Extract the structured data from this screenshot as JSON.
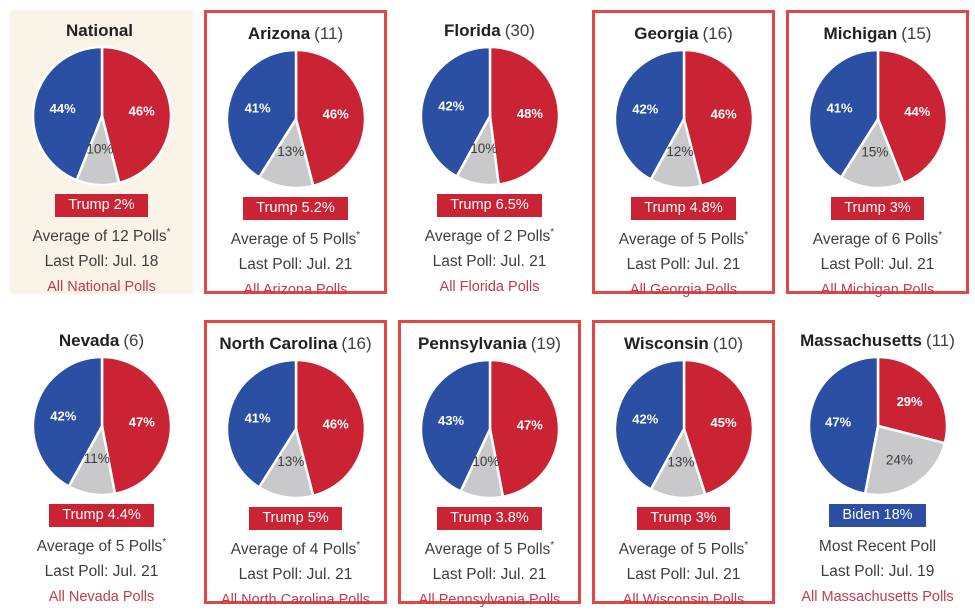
{
  "colors": {
    "biden_blue": "#2b4fa2",
    "trump_red": "#c92334",
    "undecided_gray": "#c9c9cb",
    "border_red": "#e24645",
    "highlight_bg": "#faf3e7",
    "link_red": "#c23b49",
    "title_color": "#212121",
    "count_color": "#3f3f3f",
    "body_text": "#3e3e3e",
    "gray_label_text": "#3a3a3a",
    "white_label_text": "#ffffff"
  },
  "chart_data": [
    {
      "type": "pie",
      "title": "National",
      "poll_count": "",
      "boxed": false,
      "highlight": true,
      "slices": [
        {
          "name": "Trump",
          "value": 46,
          "label": "46%",
          "color_key": "trump_red"
        },
        {
          "name": "Undecided",
          "value": 10,
          "label": "10%",
          "color_key": "undecided_gray"
        },
        {
          "name": "Biden",
          "value": 44,
          "label": "44%",
          "color_key": "biden_blue"
        }
      ],
      "badge": {
        "text": "Trump 2%",
        "color_key": "trump_red"
      },
      "average_label": "Average of 12 Polls",
      "average_note": "*",
      "last_poll": "Last Poll: Jul. 18",
      "link": "All National Polls"
    },
    {
      "type": "pie",
      "title": "Arizona",
      "poll_count": "(11)",
      "boxed": true,
      "highlight": false,
      "slices": [
        {
          "name": "Trump",
          "value": 46,
          "label": "46%",
          "color_key": "trump_red"
        },
        {
          "name": "Undecided",
          "value": 13,
          "label": "13%",
          "color_key": "undecided_gray"
        },
        {
          "name": "Biden",
          "value": 41,
          "label": "41%",
          "color_key": "biden_blue"
        }
      ],
      "badge": {
        "text": "Trump 5.2%",
        "color_key": "trump_red"
      },
      "average_label": "Average of 5 Polls",
      "average_note": "*",
      "last_poll": "Last Poll: Jul. 21",
      "link": "All Arizona Polls"
    },
    {
      "type": "pie",
      "title": "Florida",
      "poll_count": "(30)",
      "boxed": false,
      "highlight": false,
      "slices": [
        {
          "name": "Trump",
          "value": 48,
          "label": "48%",
          "color_key": "trump_red"
        },
        {
          "name": "Undecided",
          "value": 10,
          "label": "10%",
          "color_key": "undecided_gray"
        },
        {
          "name": "Biden",
          "value": 42,
          "label": "42%",
          "color_key": "biden_blue"
        }
      ],
      "badge": {
        "text": "Trump 6.5%",
        "color_key": "trump_red"
      },
      "average_label": "Average of 2 Polls",
      "average_note": "*",
      "last_poll": "Last Poll: Jul. 21",
      "link": "All Florida Polls"
    },
    {
      "type": "pie",
      "title": "Georgia",
      "poll_count": "(16)",
      "boxed": true,
      "highlight": false,
      "slices": [
        {
          "name": "Trump",
          "value": 46,
          "label": "46%",
          "color_key": "trump_red"
        },
        {
          "name": "Undecided",
          "value": 12,
          "label": "12%",
          "color_key": "undecided_gray"
        },
        {
          "name": "Biden",
          "value": 42,
          "label": "42%",
          "color_key": "biden_blue"
        }
      ],
      "badge": {
        "text": "Trump 4.8%",
        "color_key": "trump_red"
      },
      "average_label": "Average of 5 Polls",
      "average_note": "*",
      "last_poll": "Last Poll: Jul. 21",
      "link": "All Georgia Polls"
    },
    {
      "type": "pie",
      "title": "Michigan",
      "poll_count": "(15)",
      "boxed": true,
      "highlight": false,
      "slices": [
        {
          "name": "Trump",
          "value": 44,
          "label": "44%",
          "color_key": "trump_red"
        },
        {
          "name": "Undecided",
          "value": 15,
          "label": "15%",
          "color_key": "undecided_gray"
        },
        {
          "name": "Biden",
          "value": 41,
          "label": "41%",
          "color_key": "biden_blue"
        }
      ],
      "badge": {
        "text": "Trump 3%",
        "color_key": "trump_red"
      },
      "average_label": "Average of 6 Polls",
      "average_note": "*",
      "last_poll": "Last Poll: Jul. 21",
      "link": "All Michigan Polls"
    },
    {
      "type": "pie",
      "title": "Nevada",
      "poll_count": "(6)",
      "boxed": false,
      "highlight": false,
      "slices": [
        {
          "name": "Trump",
          "value": 47,
          "label": "47%",
          "color_key": "trump_red"
        },
        {
          "name": "Undecided",
          "value": 11,
          "label": "11%",
          "color_key": "undecided_gray"
        },
        {
          "name": "Biden",
          "value": 42,
          "label": "42%",
          "color_key": "biden_blue"
        }
      ],
      "badge": {
        "text": "Trump 4.4%",
        "color_key": "trump_red"
      },
      "average_label": "Average of 5 Polls",
      "average_note": "*",
      "last_poll": "Last Poll: Jul. 21",
      "link": "All Nevada Polls"
    },
    {
      "type": "pie",
      "title": "North Carolina",
      "poll_count": "(16)",
      "boxed": true,
      "highlight": false,
      "slices": [
        {
          "name": "Trump",
          "value": 46,
          "label": "46%",
          "color_key": "trump_red"
        },
        {
          "name": "Undecided",
          "value": 13,
          "label": "13%",
          "color_key": "undecided_gray"
        },
        {
          "name": "Biden",
          "value": 41,
          "label": "41%",
          "color_key": "biden_blue"
        }
      ],
      "badge": {
        "text": "Trump 5%",
        "color_key": "trump_red"
      },
      "average_label": "Average of 4 Polls",
      "average_note": "*",
      "last_poll": "Last Poll: Jul. 21",
      "link": "All North Carolina Polls"
    },
    {
      "type": "pie",
      "title": "Pennsylvania",
      "poll_count": "(19)",
      "boxed": true,
      "highlight": false,
      "slices": [
        {
          "name": "Trump",
          "value": 47,
          "label": "47%",
          "color_key": "trump_red"
        },
        {
          "name": "Undecided",
          "value": 10,
          "label": "10%",
          "color_key": "undecided_gray"
        },
        {
          "name": "Biden",
          "value": 43,
          "label": "43%",
          "color_key": "biden_blue"
        }
      ],
      "badge": {
        "text": "Trump 3.8%",
        "color_key": "trump_red"
      },
      "average_label": "Average of 5 Polls",
      "average_note": "*",
      "last_poll": "Last Poll: Jul. 21",
      "link": "All Pennsylvania Polls"
    },
    {
      "type": "pie",
      "title": "Wisconsin",
      "poll_count": "(10)",
      "boxed": true,
      "highlight": false,
      "slices": [
        {
          "name": "Trump",
          "value": 45,
          "label": "45%",
          "color_key": "trump_red"
        },
        {
          "name": "Undecided",
          "value": 13,
          "label": "13%",
          "color_key": "undecided_gray"
        },
        {
          "name": "Biden",
          "value": 42,
          "label": "42%",
          "color_key": "biden_blue"
        }
      ],
      "badge": {
        "text": "Trump 3%",
        "color_key": "trump_red"
      },
      "average_label": "Average of 5 Polls",
      "average_note": "*",
      "last_poll": "Last Poll: Jul. 21",
      "link": "All Wisconsin Polls"
    },
    {
      "type": "pie",
      "title": "Massachusetts",
      "poll_count": "(11)",
      "boxed": false,
      "highlight": false,
      "slices": [
        {
          "name": "Trump",
          "value": 29,
          "label": "29%",
          "color_key": "trump_red"
        },
        {
          "name": "Undecided",
          "value": 24,
          "label": "24%",
          "color_key": "undecided_gray"
        },
        {
          "name": "Biden",
          "value": 47,
          "label": "47%",
          "color_key": "biden_blue"
        }
      ],
      "badge": {
        "text": "Biden 18%",
        "color_key": "biden_blue"
      },
      "average_label": "Most Recent Poll",
      "average_note": "",
      "last_poll": "Last Poll: Jul. 19",
      "link": "All Massachusetts Polls"
    }
  ]
}
